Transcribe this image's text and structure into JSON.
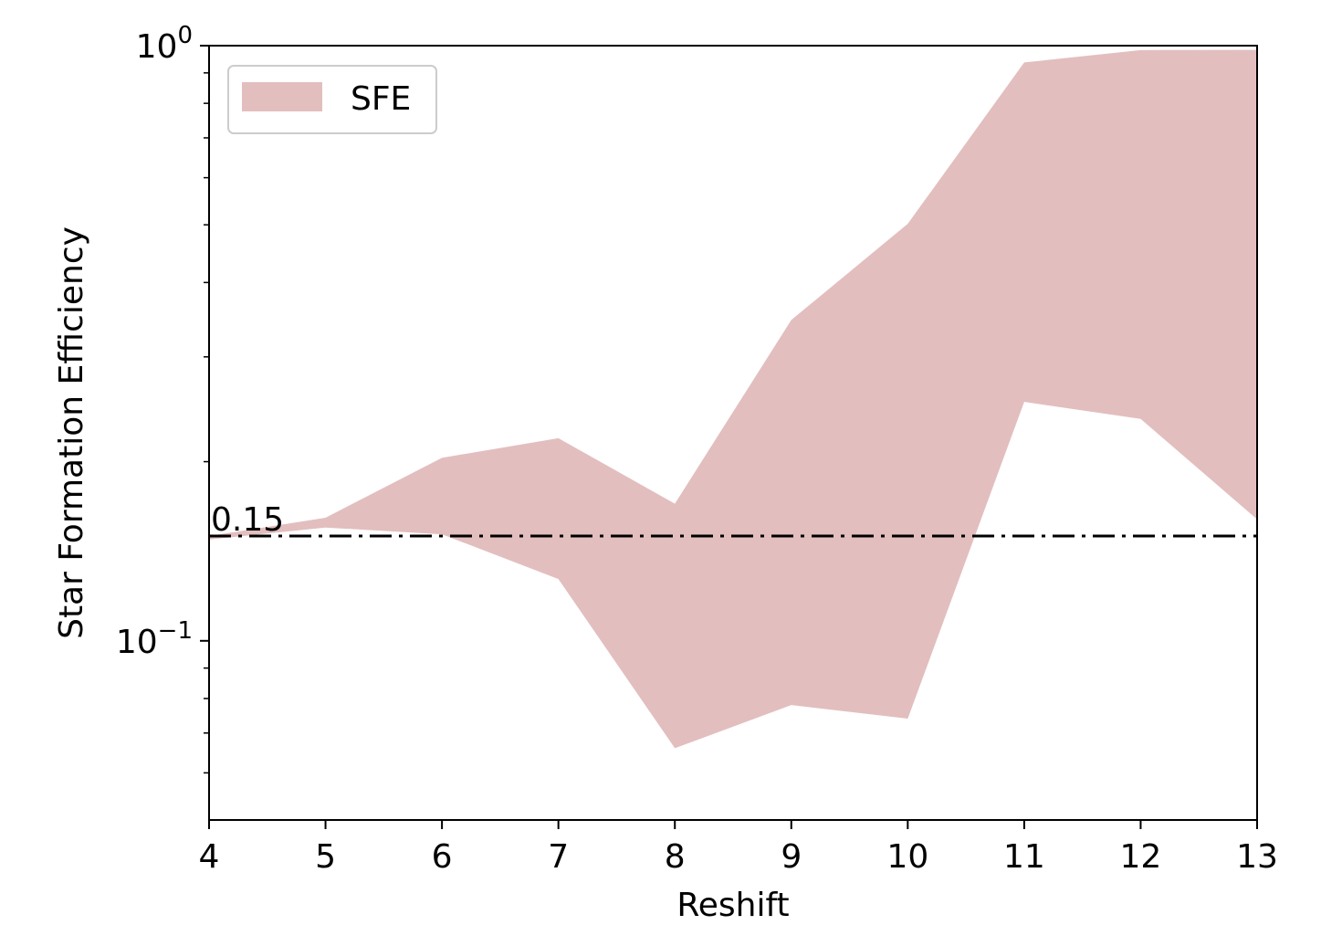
{
  "chart_data": {
    "type": "area",
    "title": "",
    "xlabel": "Reshift",
    "ylabel": "Star Formation Efficiency",
    "xlim": [
      4,
      13
    ],
    "ylim": [
      0.05,
      1.0
    ],
    "yscale": "log",
    "grid": false,
    "legend_placement": "top-left",
    "x": [
      4,
      5,
      6,
      7,
      8,
      9,
      10,
      11,
      12,
      13
    ],
    "series": [
      {
        "name": "SFE",
        "color": "#e3bebe",
        "lower": [
          0.148,
          0.155,
          0.151,
          0.127,
          0.066,
          0.078,
          0.074,
          0.252,
          0.236,
          0.16
        ],
        "upper": [
          0.15,
          0.161,
          0.203,
          0.219,
          0.17,
          0.346,
          0.502,
          0.937,
          0.983,
          0.984
        ]
      }
    ],
    "reference_line": {
      "value": 0.15,
      "label": "0.15",
      "style": "dash-dot",
      "color": "#000000"
    },
    "x_ticks": [
      {
        "value": 4,
        "label": "4"
      },
      {
        "value": 5,
        "label": "5"
      },
      {
        "value": 6,
        "label": "6"
      },
      {
        "value": 7,
        "label": "7"
      },
      {
        "value": 8,
        "label": "8"
      },
      {
        "value": 9,
        "label": "9"
      },
      {
        "value": 10,
        "label": "10"
      },
      {
        "value": 11,
        "label": "11"
      },
      {
        "value": 12,
        "label": "12"
      },
      {
        "value": 13,
        "label": "13"
      }
    ],
    "y_major_ticks": [
      {
        "value": 1.0,
        "base": "10",
        "exp": "0"
      },
      {
        "value": 0.1,
        "base": "10",
        "exp": "−1"
      }
    ],
    "y_minor_ticks": [
      0.06,
      0.07,
      0.08,
      0.09,
      0.2,
      0.3,
      0.4,
      0.5,
      0.6,
      0.7,
      0.8,
      0.9
    ]
  }
}
